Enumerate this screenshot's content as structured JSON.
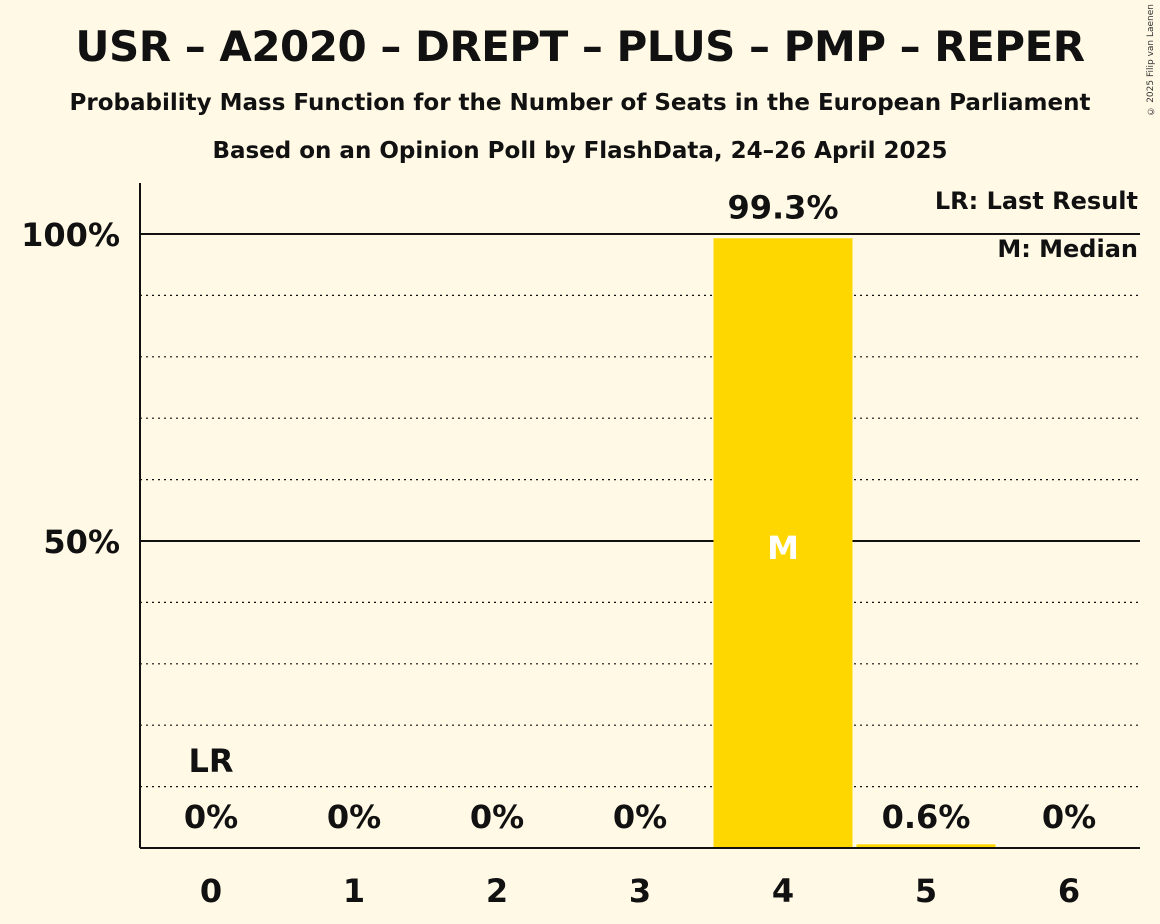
{
  "title": "USR – A2020 – DREPT – PLUS – PMP – REPER",
  "subtitle1": "Probability Mass Function for the Number of Seats in the European Parliament",
  "subtitle2": "Based on an Opinion Poll by FlashData, 24–26 April 2025",
  "copyright": "© 2025 Filip van Laenen",
  "legend": {
    "last_result": "LR: Last Result",
    "median": "M: Median"
  },
  "colors": {
    "background": "#fff9e6",
    "bar": "#ffd700",
    "text": "#111111"
  },
  "chart_data": {
    "type": "bar",
    "categories": [
      "0",
      "1",
      "2",
      "3",
      "4",
      "5",
      "6"
    ],
    "values": [
      0,
      0,
      0,
      0,
      99.3,
      0.6,
      0
    ],
    "value_labels": [
      "0%",
      "0%",
      "0%",
      "0%",
      "99.3%",
      "0.6%",
      "0%"
    ],
    "ylim": [
      0,
      100
    ],
    "yticks": [
      {
        "value": 50,
        "label": "50%"
      },
      {
        "value": 100,
        "label": "100%"
      }
    ],
    "minor_gridlines": [
      10,
      20,
      30,
      40,
      60,
      70,
      80,
      90
    ],
    "last_result": {
      "category": "0",
      "label": "LR"
    },
    "median": {
      "category": "4",
      "label": "M"
    },
    "legend_position": "top-right"
  }
}
